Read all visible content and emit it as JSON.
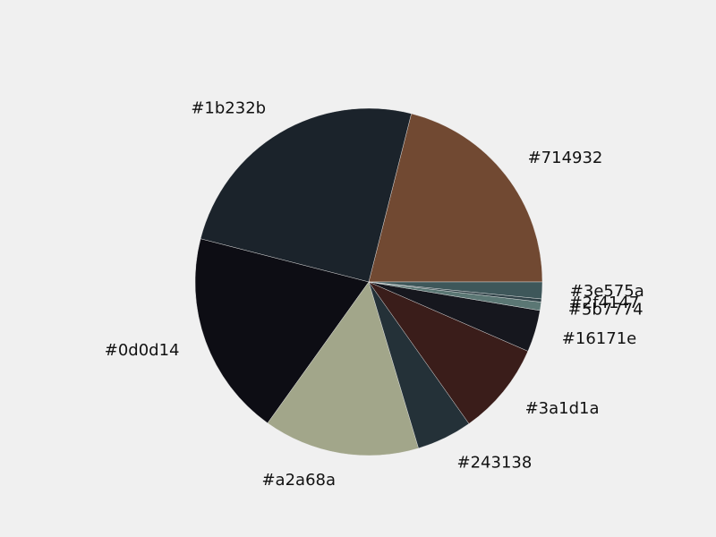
{
  "chart_data": {
    "type": "pie",
    "title": "",
    "start_angle_deg": 0,
    "direction": "counterclockwise",
    "slices": [
      {
        "label": "#714932",
        "value": 21.6,
        "color": "#714932"
      },
      {
        "label": "#1b232b",
        "value": 25.6,
        "color": "#1b232b"
      },
      {
        "label": "#0d0d14",
        "value": 19.6,
        "color": "#0d0d14"
      },
      {
        "label": "#a2a68a",
        "value": 14.9,
        "color": "#a2a68a"
      },
      {
        "label": "#243138",
        "value": 5.3,
        "color": "#243138"
      },
      {
        "label": "#3a1d1a",
        "value": 8.9,
        "color": "#3a1d1a"
      },
      {
        "label": "#16171e",
        "value": 4.0,
        "color": "#16171e"
      },
      {
        "label": "#5b7774",
        "value": 0.8,
        "color": "#5b7774"
      },
      {
        "label": "#2f4147",
        "value": 0.3,
        "color": "#2f4147"
      },
      {
        "label": "#3e575a",
        "value": 1.6,
        "color": "#3e575a"
      }
    ]
  }
}
